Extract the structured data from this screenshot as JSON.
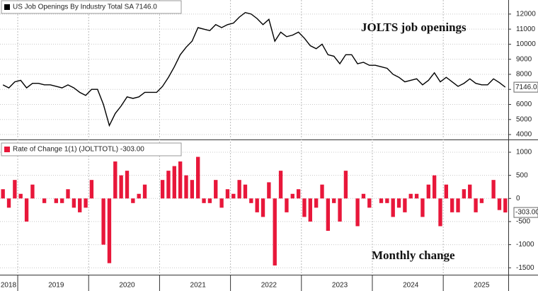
{
  "chart_data": [
    {
      "type": "line",
      "legend": "US Job Openings By Industry Total SA 7146.0",
      "color": "#000000",
      "annotation": "JOLTS job openings",
      "last_value_label": "7146.0",
      "values": [
        7300,
        7100,
        7500,
        7600,
        7100,
        7400,
        7400,
        7300,
        7300,
        7200,
        7100,
        7300,
        7100,
        6800,
        6600,
        7000,
        7000,
        6000,
        4600,
        5400,
        5900,
        6500,
        6400,
        6500,
        6800,
        6800,
        6800,
        7200,
        7800,
        8500,
        9300,
        9800,
        10200,
        11100,
        11000,
        10900,
        11300,
        11100,
        11300,
        11400,
        11800,
        12100,
        12000,
        11700,
        11300,
        11650,
        10200,
        10800,
        10500,
        10600,
        10800,
        10400,
        9900,
        9700,
        10000,
        9300,
        9200,
        8700,
        9300,
        9300,
        8700,
        8800,
        8600,
        8600,
        8500,
        8400,
        8000,
        7800,
        7500,
        7600,
        7700,
        7300,
        7600,
        8100,
        7500,
        7800,
        7500,
        7200,
        7400,
        7700,
        7400,
        7300,
        7300,
        7700,
        7449,
        7146
      ],
      "ylim": [
        3720,
        12840
      ],
      "yticks": [
        4000,
        5000,
        6000,
        7000,
        8000,
        9000,
        10000,
        11000,
        12000
      ],
      "grid": true
    },
    {
      "type": "bar",
      "legend": "Rate of Change 1(1) (JOLTTOTL) -303.00",
      "color": "#e8173a",
      "annotation": "Monthly change",
      "last_value_label": "-303.00",
      "categories": [
        "2018",
        null,
        null,
        null,
        null,
        null,
        null,
        null,
        null,
        "2019",
        null,
        null,
        null,
        null,
        null,
        null,
        null,
        null,
        null,
        null,
        null,
        "2020",
        null,
        null,
        null,
        null,
        null,
        null,
        null,
        null,
        null,
        null,
        null,
        "2021",
        null,
        null,
        null,
        null,
        null,
        null,
        null,
        null,
        null,
        null,
        null,
        "2022",
        null,
        null,
        null,
        null,
        null,
        null,
        null,
        null,
        null,
        null,
        null,
        "2023",
        null,
        null,
        null,
        null,
        null,
        null,
        null,
        null,
        null,
        null,
        null,
        "2024",
        null,
        null,
        null,
        null,
        null,
        null,
        null,
        null,
        null,
        null,
        null,
        "2025",
        null,
        null,
        null,
        null
      ],
      "values": [
        200,
        -200,
        400,
        100,
        -500,
        300,
        0,
        -100,
        0,
        -100,
        -100,
        200,
        -200,
        -300,
        -200,
        400,
        0,
        -1000,
        -1400,
        800,
        500,
        600,
        -100,
        100,
        300,
        0,
        0,
        400,
        600,
        700,
        800,
        500,
        400,
        900,
        -100,
        -100,
        400,
        -200,
        200,
        100,
        400,
        300,
        -100,
        -300,
        -400,
        350,
        -1450,
        600,
        -300,
        100,
        200,
        -400,
        -500,
        -200,
        300,
        -700,
        -100,
        -500,
        600,
        0,
        -600,
        100,
        -200,
        0,
        -100,
        -100,
        -400,
        -200,
        -300,
        100,
        100,
        -400,
        300,
        500,
        -600,
        300,
        -300,
        -300,
        200,
        300,
        -300,
        -100,
        0,
        400,
        -251,
        -303
      ],
      "ylim": [
        -1650,
        1230
      ],
      "yticks": [
        -1500,
        -1000,
        -500,
        0,
        500,
        1000
      ],
      "grid": true
    }
  ]
}
